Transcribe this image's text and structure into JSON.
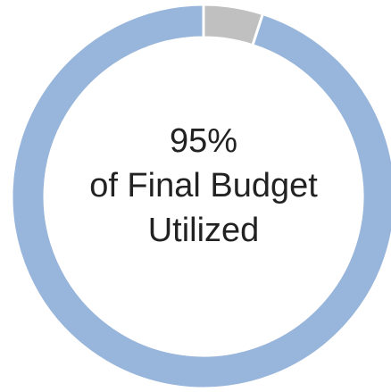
{
  "chart_data": {
    "type": "donut",
    "values": [
      95,
      5
    ],
    "value_labels": [
      "95%",
      null
    ],
    "colors": [
      "#98b5db",
      "#c0c0c0"
    ],
    "center_text": [
      "of Final Budget",
      "Utilized"
    ]
  }
}
